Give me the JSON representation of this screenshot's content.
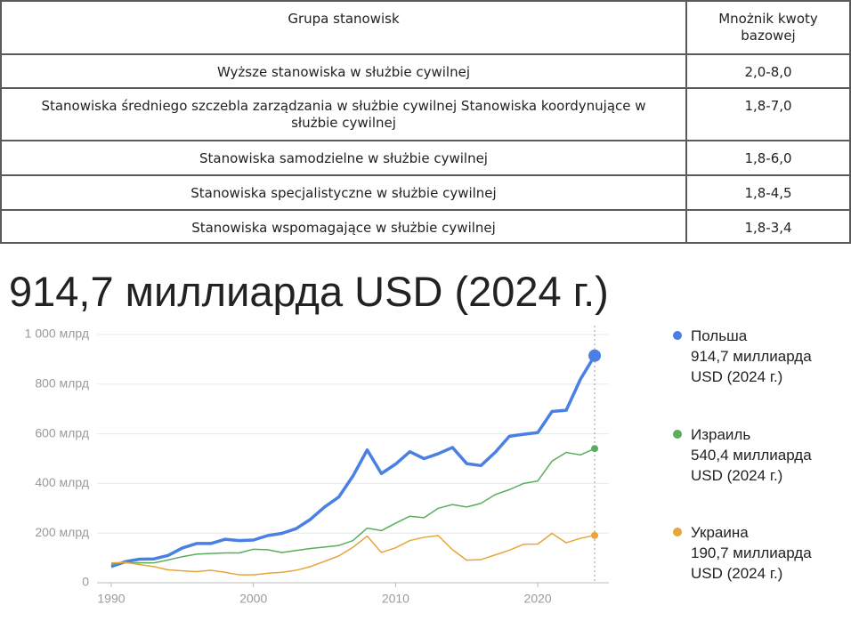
{
  "table": {
    "header": [
      "Grupa stanowisk",
      "Mnożnik kwoty bazowej"
    ],
    "rows": [
      [
        "Wyższe stanowiska w służbie cywilnej",
        "2,0-8,0"
      ],
      [
        "Stanowiska średniego szczebla zarządzania w służbie cywilnej Stanowiska koordynujące w służbie cywilnej",
        "1,8-7,0"
      ],
      [
        "Stanowiska samodzielne w służbie cywilnej",
        "1,8-6,0"
      ],
      [
        "Stanowiska specjalistyczne w służbie cywilnej",
        "1,8-4,5"
      ],
      [
        "Stanowiska wspomagające w służbie cywilnej",
        "1,8-3,4"
      ]
    ]
  },
  "chart_data": {
    "type": "line",
    "title": "914,7 миллиарда USD (2024 г.)",
    "x": [
      1990,
      1991,
      1992,
      1993,
      1994,
      1995,
      1996,
      1997,
      1998,
      1999,
      2000,
      2001,
      2002,
      2003,
      2004,
      2005,
      2006,
      2007,
      2008,
      2009,
      2010,
      2011,
      2012,
      2013,
      2014,
      2015,
      2016,
      2017,
      2018,
      2019,
      2020,
      2021,
      2022,
      2023,
      2024
    ],
    "xlim": [
      1989,
      2025
    ],
    "xticks": [
      1990,
      2000,
      2010,
      2020
    ],
    "ylim": [
      0,
      1000
    ],
    "yticks": [
      0,
      {
        "value": 200,
        "label": "200 млрд"
      },
      {
        "value": 400,
        "label": "400 млрд"
      },
      {
        "value": 600,
        "label": "600 млрд"
      },
      {
        "value": 800,
        "label": "800 млрд"
      },
      {
        "value": 1000,
        "label": "1 000 млрд"
      }
    ],
    "grid": true,
    "series": [
      {
        "name": "Польша",
        "color": "#4a7fe3",
        "values": [
          65,
          85,
          95,
          96,
          110,
          140,
          158,
          158,
          175,
          170,
          172,
          190,
          199,
          218,
          255,
          305,
          345,
          430,
          535,
          440,
          478,
          528,
          500,
          520,
          545,
          480,
          472,
          525,
          590,
          598,
          605,
          690,
          695,
          820,
          914.7
        ],
        "value_labels": [
          null,
          null,
          null,
          null,
          null,
          null,
          null,
          null,
          null,
          null,
          null,
          null,
          null,
          null,
          null,
          null,
          null,
          null,
          null,
          null,
          null,
          null,
          null,
          null,
          null,
          null,
          null,
          null,
          null,
          null,
          null,
          null,
          null,
          null,
          "914,7 миллиарда USD (2024 г.)"
        ]
      },
      {
        "name": "Израиль",
        "color": "#5aad5c",
        "values": [
          75,
          80,
          80,
          80,
          92,
          105,
          115,
          118,
          120,
          120,
          135,
          133,
          122,
          130,
          138,
          144,
          150,
          170,
          220,
          210,
          240,
          268,
          262,
          300,
          315,
          305,
          320,
          355,
          375,
          400,
          410,
          490,
          525,
          515,
          540.4
        ],
        "value_labels": [
          null,
          null,
          null,
          null,
          null,
          null,
          null,
          null,
          null,
          null,
          null,
          null,
          null,
          null,
          null,
          null,
          null,
          null,
          null,
          null,
          null,
          null,
          null,
          null,
          null,
          null,
          null,
          null,
          null,
          null,
          null,
          null,
          null,
          null,
          "540,4 миллиарда USD (2024 г.)"
        ]
      },
      {
        "name": "Украина",
        "color": "#e8a53a",
        "values": [
          80,
          82,
          73,
          65,
          52,
          48,
          45,
          50,
          42,
          32,
          32,
          38,
          42,
          50,
          65,
          86,
          108,
          143,
          188,
          122,
          141,
          170,
          183,
          190,
          133,
          91,
          93,
          112,
          131,
          155,
          156,
          199,
          161,
          179,
          190.7
        ],
        "value_labels": [
          null,
          null,
          null,
          null,
          null,
          null,
          null,
          null,
          null,
          null,
          null,
          null,
          null,
          null,
          null,
          null,
          null,
          null,
          null,
          null,
          null,
          null,
          null,
          null,
          null,
          null,
          null,
          null,
          null,
          null,
          null,
          null,
          null,
          null,
          "190,7 миллиарда USD (2024 г.)"
        ]
      }
    ]
  }
}
